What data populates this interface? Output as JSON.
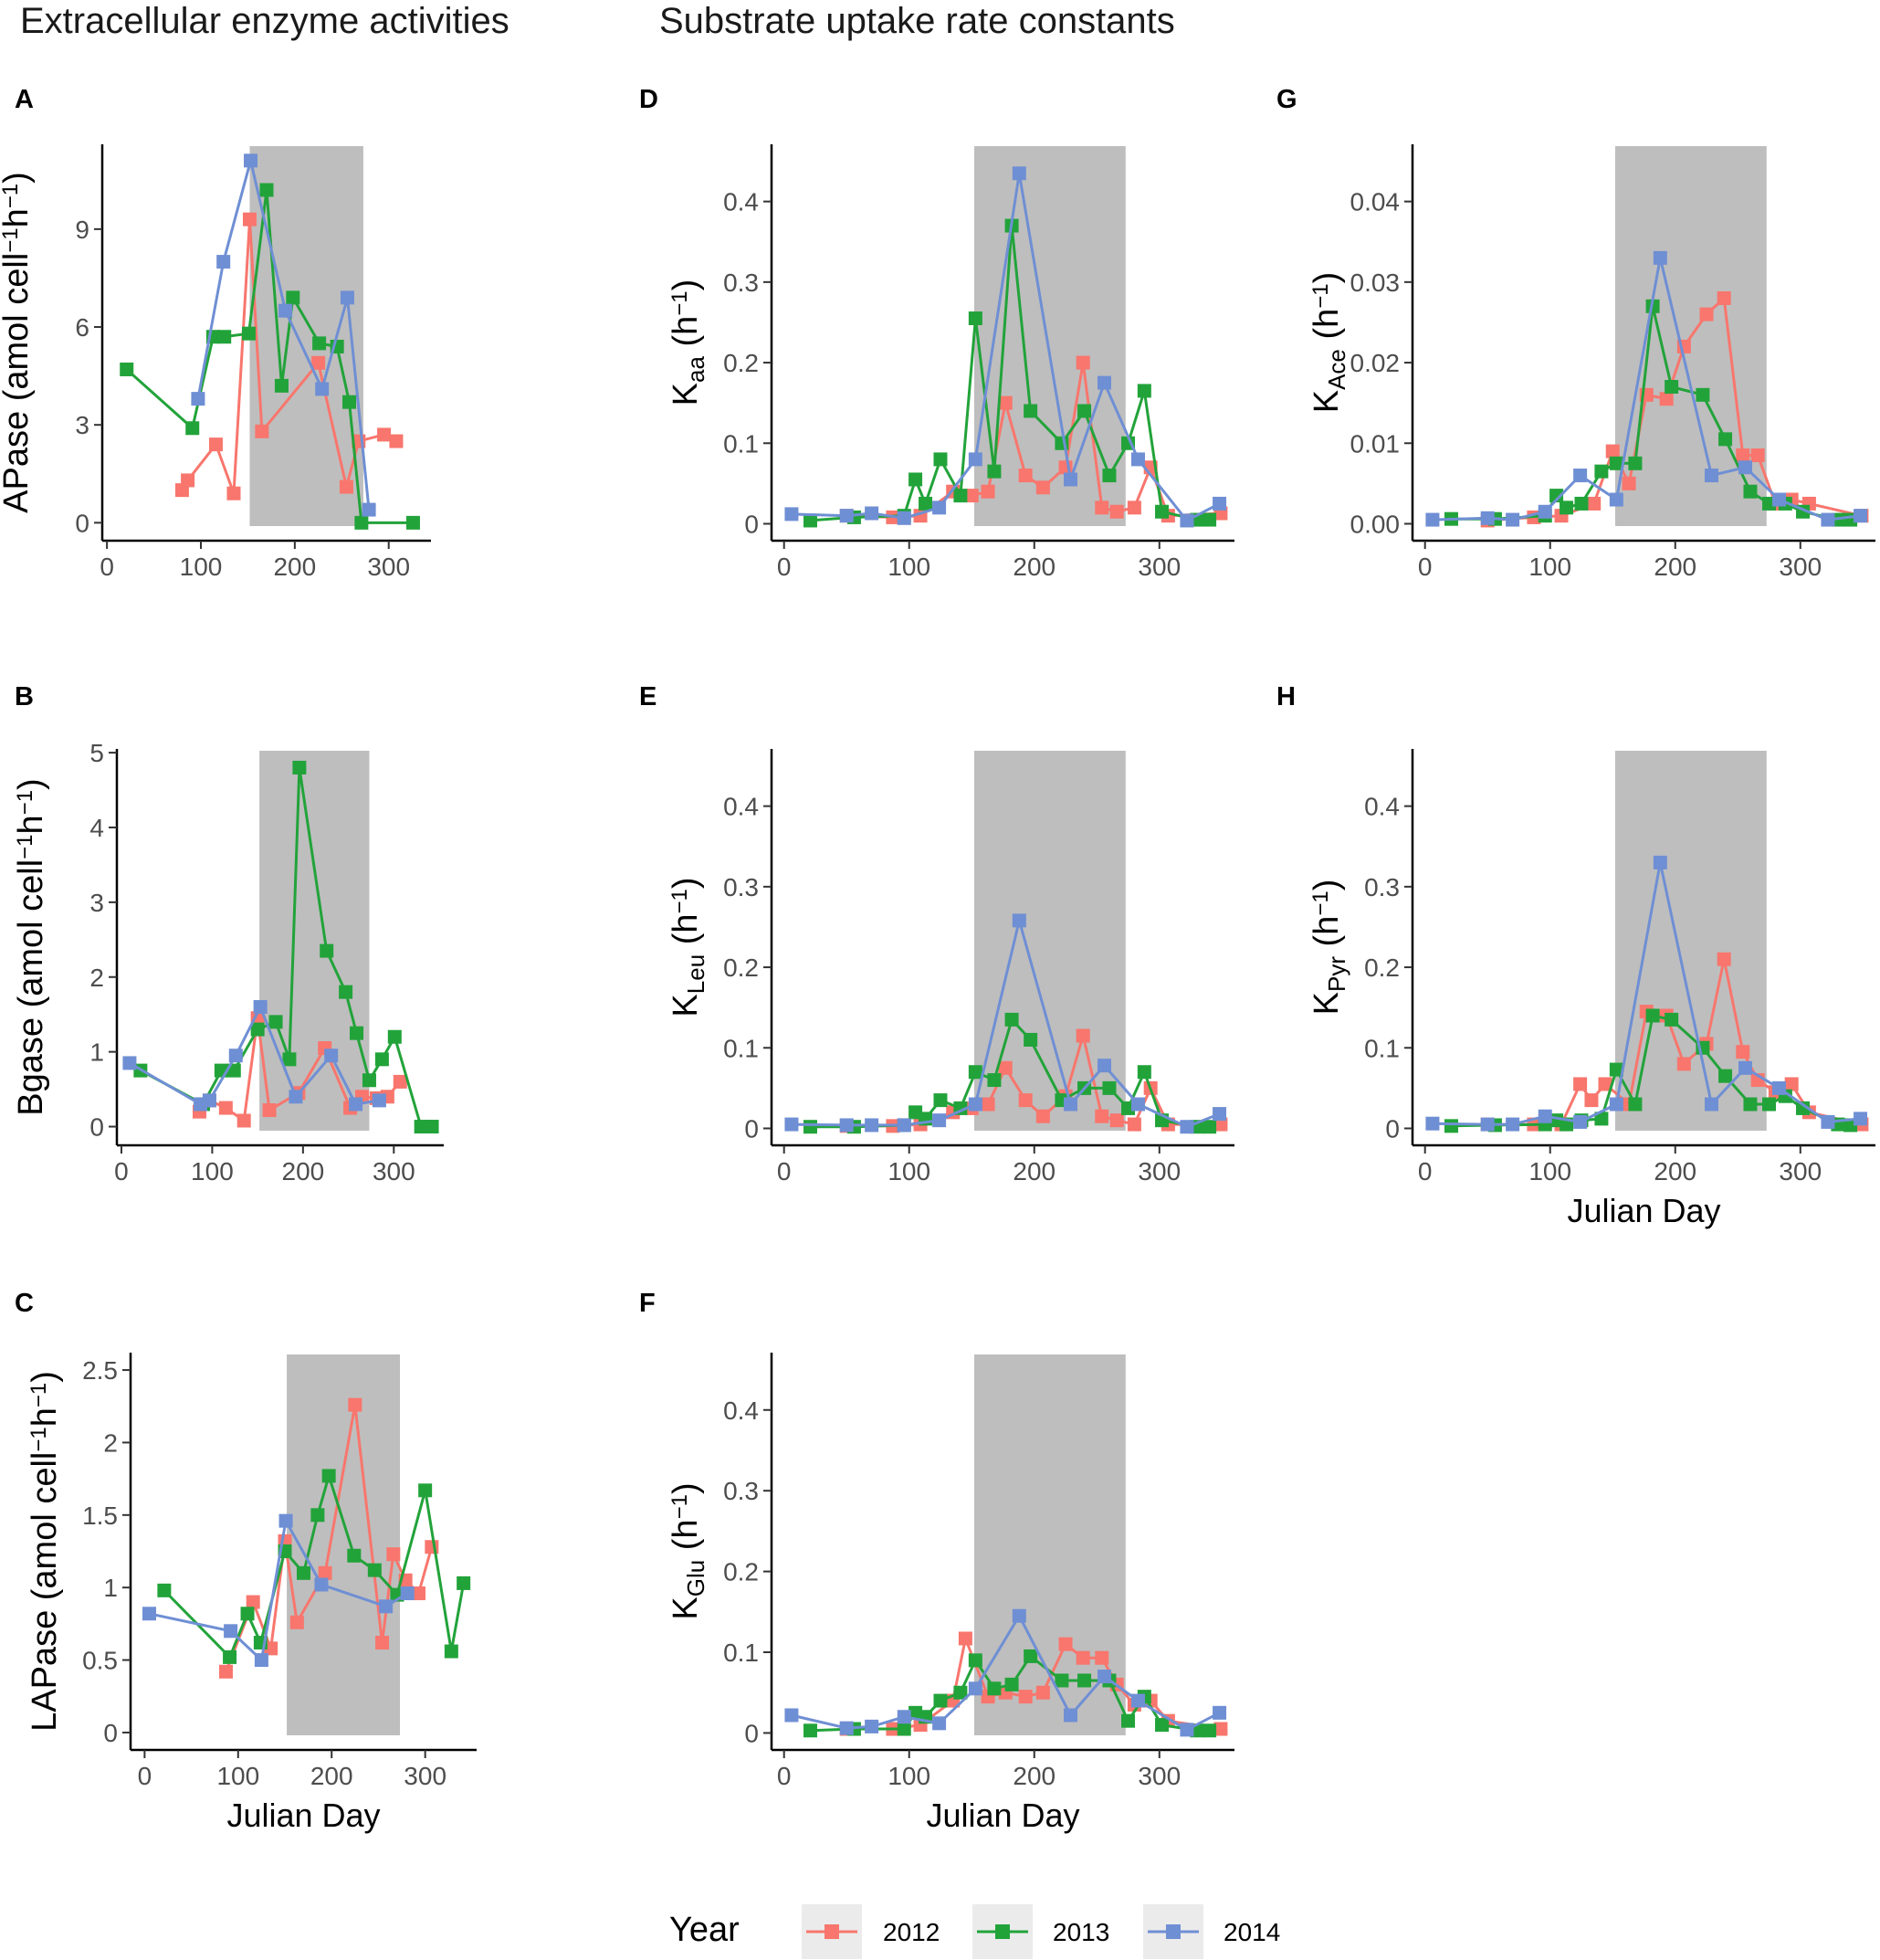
{
  "section_titles": {
    "left": "Extracellular enzyme activities",
    "right": "Substrate uptake rate constants"
  },
  "x_axis_title": "Julian Day",
  "legend": {
    "title": "Year",
    "entries": [
      {
        "label": "2012",
        "color": "#F8766D"
      },
      {
        "label": "2013",
        "color": "#22A33A"
      },
      {
        "label": "2014",
        "color": "#6F8FD4"
      }
    ]
  },
  "shading": {
    "color": "#BEBEBE"
  },
  "chart_data": [
    {
      "panel": "A",
      "type": "line",
      "ylabel": {
        "main": "APase (amol cell",
        "sup1": "−1",
        "mid": "h",
        "sup2": "−1",
        "end": ")"
      },
      "xlim": [
        -5,
        345
      ],
      "ylim": [
        -0.55,
        11.6
      ],
      "xticks": [
        0,
        100,
        200,
        300
      ],
      "yticks": [
        0,
        3,
        6,
        9
      ],
      "shade": [
        152,
        273
      ],
      "show_xlabel": false,
      "series": [
        {
          "name": "2012",
          "x": [
            80,
            86,
            116,
            135,
            152,
            165,
            225,
            255,
            268,
            295,
            308
          ],
          "y": [
            1.0,
            1.3,
            2.4,
            0.9,
            9.3,
            2.8,
            4.9,
            1.1,
            2.5,
            2.7,
            2.5
          ]
        },
        {
          "name": "2013",
          "x": [
            21,
            91,
            113,
            125,
            151,
            170,
            186,
            198,
            226,
            245,
            258,
            271,
            326
          ],
          "y": [
            4.7,
            2.9,
            5.7,
            5.7,
            5.8,
            10.2,
            4.2,
            6.9,
            5.5,
            5.4,
            3.7,
            0.0,
            0.0
          ]
        },
        {
          "name": "2014",
          "x": [
            97,
            124,
            153,
            190,
            229,
            256,
            279
          ],
          "y": [
            3.8,
            8.0,
            11.1,
            6.5,
            4.1,
            6.9,
            0.4
          ]
        }
      ]
    },
    {
      "panel": "B",
      "type": "line",
      "ylabel": {
        "main": "Bgase (amol cell",
        "sup1": "−1",
        "mid": "h",
        "sup2": "−1",
        "end": ")"
      },
      "xlim": [
        -5,
        355
      ],
      "ylim": [
        -0.25,
        5.05
      ],
      "xticks": [
        0,
        100,
        200,
        300
      ],
      "yticks": [
        0,
        1,
        2,
        3,
        4,
        5
      ],
      "shade": [
        152,
        273
      ],
      "show_xlabel": false,
      "series": [
        {
          "name": "2012",
          "x": [
            86,
            97,
            115,
            135,
            150,
            163,
            195,
            224,
            252,
            265,
            281,
            293,
            307
          ],
          "y": [
            0.2,
            0.35,
            0.25,
            0.08,
            1.45,
            0.22,
            0.45,
            1.05,
            0.25,
            0.4,
            0.38,
            0.4,
            0.6
          ]
        },
        {
          "name": "2013",
          "x": [
            21,
            90,
            110,
            124,
            150,
            170,
            185,
            196,
            226,
            247,
            259,
            273,
            287,
            301,
            330,
            342
          ],
          "y": [
            0.75,
            0.3,
            0.75,
            0.75,
            1.3,
            1.4,
            0.9,
            4.8,
            2.35,
            1.8,
            1.25,
            0.62,
            0.9,
            1.2,
            0.0,
            0.0
          ]
        },
        {
          "name": "2014",
          "x": [
            9,
            87,
            97,
            126,
            153,
            192,
            231,
            258,
            284
          ],
          "y": [
            0.85,
            0.3,
            0.35,
            0.95,
            1.6,
            0.4,
            0.95,
            0.3,
            0.35
          ]
        }
      ]
    },
    {
      "panel": "C",
      "type": "line",
      "ylabel": {
        "main": "LAPase (amol cell",
        "sup1": "−1",
        "mid": "h",
        "sup2": "−1",
        "end": ")"
      },
      "xlim": [
        -15,
        355
      ],
      "ylim": [
        -0.12,
        2.62
      ],
      "xticks": [
        0,
        100,
        200,
        300
      ],
      "yticks": [
        0.0,
        0.5,
        1.0,
        1.5,
        2.0,
        2.5
      ],
      "shade": [
        152,
        273
      ],
      "show_xlabel": true,
      "series": [
        {
          "name": "2012",
          "x": [
            87,
            116,
            135,
            150,
            163,
            193,
            225,
            254,
            266,
            279,
            293,
            307
          ],
          "y": [
            0.42,
            0.9,
            0.58,
            1.32,
            0.76,
            1.1,
            2.26,
            0.62,
            1.23,
            1.05,
            0.96,
            1.28
          ]
        },
        {
          "name": "2013",
          "x": [
            21,
            91,
            110,
            124,
            150,
            170,
            185,
            197,
            224,
            246,
            270,
            300,
            328,
            341
          ],
          "y": [
            0.98,
            0.52,
            0.82,
            0.62,
            1.25,
            1.1,
            1.5,
            1.77,
            1.22,
            1.12,
            0.95,
            1.67,
            0.56,
            1.03
          ]
        },
        {
          "name": "2014",
          "x": [
            5,
            92,
            125,
            151,
            189,
            258,
            281
          ],
          "y": [
            0.82,
            0.7,
            0.5,
            1.46,
            1.02,
            0.87,
            0.96
          ]
        }
      ]
    },
    {
      "panel": "D",
      "type": "line",
      "ylabel": {
        "main": "K",
        "sub": "aa",
        "end": " (h",
        "sup": "−1",
        "close": ")"
      },
      "xlim": [
        -10,
        360
      ],
      "ylim": [
        -0.021,
        0.471
      ],
      "xticks": [
        0,
        100,
        200,
        300
      ],
      "yticks": [
        0.0,
        0.1,
        0.2,
        0.3,
        0.4
      ],
      "shade": [
        152,
        273
      ],
      "show_xlabel": false,
      "series": [
        {
          "name": "2012",
          "x": [
            50,
            87,
            109,
            135,
            150,
            163,
            177,
            193,
            207,
            225,
            239,
            254,
            266,
            280,
            293,
            307,
            349
          ],
          "y": [
            0.01,
            0.008,
            0.01,
            0.04,
            0.035,
            0.04,
            0.15,
            0.06,
            0.045,
            0.07,
            0.2,
            0.02,
            0.015,
            0.02,
            0.07,
            0.01,
            0.013
          ]
        },
        {
          "name": "2013",
          "x": [
            21,
            56,
            96,
            105,
            113,
            125,
            141,
            153,
            168,
            182,
            197,
            222,
            240,
            260,
            275,
            288,
            302,
            330,
            340
          ],
          "y": [
            0.004,
            0.008,
            0.01,
            0.055,
            0.025,
            0.08,
            0.035,
            0.255,
            0.065,
            0.37,
            0.14,
            0.1,
            0.14,
            0.06,
            0.1,
            0.165,
            0.015,
            0.005,
            0.005
          ]
        },
        {
          "name": "2014",
          "x": [
            6,
            50,
            70,
            96,
            124,
            153,
            188,
            229,
            256,
            283,
            322,
            348
          ],
          "y": [
            0.012,
            0.01,
            0.013,
            0.007,
            0.02,
            0.08,
            0.435,
            0.055,
            0.175,
            0.08,
            0.004,
            0.025
          ]
        }
      ]
    },
    {
      "panel": "E",
      "type": "line",
      "ylabel": {
        "main": "K",
        "sub": "Leu",
        "end": " (h",
        "sup": "−1",
        "close": ")"
      },
      "xlim": [
        -10,
        360
      ],
      "ylim": [
        -0.021,
        0.471
      ],
      "xticks": [
        0,
        100,
        200,
        300
      ],
      "yticks": [
        0.0,
        0.1,
        0.2,
        0.3,
        0.4
      ],
      "shade": [
        152,
        273
      ],
      "show_xlabel": false,
      "series": [
        {
          "name": "2012",
          "x": [
            50,
            87,
            109,
            135,
            150,
            163,
            177,
            193,
            207,
            225,
            239,
            254,
            266,
            280,
            293,
            307,
            349
          ],
          "y": [
            0.003,
            0.003,
            0.005,
            0.02,
            0.025,
            0.03,
            0.075,
            0.035,
            0.015,
            0.04,
            0.115,
            0.015,
            0.01,
            0.005,
            0.05,
            0.005,
            0.005
          ]
        },
        {
          "name": "2013",
          "x": [
            21,
            56,
            96,
            105,
            113,
            125,
            141,
            153,
            168,
            182,
            197,
            222,
            240,
            260,
            275,
            288,
            302,
            330,
            340
          ],
          "y": [
            0.002,
            0.002,
            0.004,
            0.02,
            0.012,
            0.035,
            0.025,
            0.07,
            0.06,
            0.135,
            0.11,
            0.035,
            0.05,
            0.05,
            0.025,
            0.07,
            0.01,
            0.002,
            0.002
          ]
        },
        {
          "name": "2014",
          "x": [
            6,
            50,
            70,
            96,
            124,
            153,
            188,
            229,
            256,
            283,
            322,
            348
          ],
          "y": [
            0.005,
            0.004,
            0.004,
            0.004,
            0.01,
            0.03,
            0.258,
            0.03,
            0.078,
            0.03,
            0.002,
            0.018
          ]
        }
      ]
    },
    {
      "panel": "F",
      "type": "line",
      "ylabel": {
        "main": "K",
        "sub": "Glu",
        "end": " (h",
        "sup": "−1",
        "close": ")"
      },
      "xlim": [
        -10,
        360
      ],
      "ylim": [
        -0.021,
        0.471
      ],
      "xticks": [
        0,
        100,
        200,
        300
      ],
      "yticks": [
        0.0,
        0.1,
        0.2,
        0.3,
        0.4
      ],
      "shade": [
        152,
        273
      ],
      "show_xlabel": true,
      "series": [
        {
          "name": "2012",
          "x": [
            50,
            87,
            109,
            135,
            145,
            163,
            177,
            193,
            207,
            225,
            239,
            254,
            266,
            280,
            293,
            307,
            349
          ],
          "y": [
            0.005,
            0.005,
            0.01,
            0.04,
            0.117,
            0.045,
            0.05,
            0.045,
            0.05,
            0.11,
            0.093,
            0.093,
            0.06,
            0.035,
            0.04,
            0.015,
            0.005
          ]
        },
        {
          "name": "2013",
          "x": [
            21,
            56,
            96,
            105,
            113,
            125,
            141,
            153,
            168,
            182,
            197,
            222,
            240,
            260,
            275,
            288,
            302,
            330,
            340
          ],
          "y": [
            0.003,
            0.005,
            0.005,
            0.025,
            0.02,
            0.04,
            0.05,
            0.09,
            0.055,
            0.06,
            0.095,
            0.065,
            0.065,
            0.065,
            0.015,
            0.045,
            0.01,
            0.003,
            0.003
          ]
        },
        {
          "name": "2014",
          "x": [
            6,
            50,
            70,
            96,
            124,
            153,
            188,
            229,
            256,
            283,
            322,
            348
          ],
          "y": [
            0.022,
            0.006,
            0.008,
            0.02,
            0.012,
            0.055,
            0.145,
            0.022,
            0.07,
            0.04,
            0.004,
            0.025
          ]
        }
      ]
    },
    {
      "panel": "G",
      "type": "line",
      "ylabel": {
        "main": "K",
        "sub": "Ace",
        "end": " (h",
        "sup": "−1",
        "close": ")"
      },
      "xlim": [
        -10,
        360
      ],
      "ylim": [
        -0.0021,
        0.0471
      ],
      "xticks": [
        0,
        100,
        200,
        300
      ],
      "yticks": [
        0.0,
        0.01,
        0.02,
        0.03,
        0.04
      ],
      "ytick_labels": [
        "0.00",
        "0.01",
        "0.02",
        "0.03",
        "0.04"
      ],
      "shade": [
        152,
        273
      ],
      "show_xlabel": false,
      "series": [
        {
          "name": "2012",
          "x": [
            50,
            87,
            109,
            135,
            150,
            163,
            177,
            193,
            207,
            225,
            239,
            254,
            266,
            280,
            293,
            307,
            349
          ],
          "y": [
            0.0004,
            0.0008,
            0.001,
            0.0025,
            0.009,
            0.005,
            0.016,
            0.0155,
            0.022,
            0.026,
            0.028,
            0.0085,
            0.0085,
            0.0025,
            0.003,
            0.0025,
            0.001
          ]
        },
        {
          "name": "2013",
          "x": [
            21,
            56,
            96,
            105,
            113,
            125,
            141,
            153,
            168,
            182,
            197,
            222,
            240,
            260,
            275,
            288,
            302,
            330,
            340
          ],
          "y": [
            0.0006,
            0.0006,
            0.001,
            0.0035,
            0.002,
            0.0025,
            0.0065,
            0.0075,
            0.0075,
            0.027,
            0.017,
            0.016,
            0.0105,
            0.004,
            0.0025,
            0.0025,
            0.0015,
            0.0005,
            0.0005
          ]
        },
        {
          "name": "2014",
          "x": [
            6,
            50,
            70,
            96,
            124,
            153,
            188,
            229,
            256,
            283,
            322,
            348
          ],
          "y": [
            0.0005,
            0.0007,
            0.0005,
            0.0015,
            0.006,
            0.003,
            0.033,
            0.006,
            0.007,
            0.003,
            0.0005,
            0.001
          ]
        }
      ]
    },
    {
      "panel": "H",
      "type": "line",
      "ylabel": {
        "main": "K",
        "sub": "Pyr",
        "end": " (h",
        "sup": "−1",
        "close": ")"
      },
      "xlim": [
        -10,
        360
      ],
      "ylim": [
        -0.021,
        0.471
      ],
      "xticks": [
        0,
        100,
        200,
        300
      ],
      "yticks": [
        0.0,
        0.1,
        0.2,
        0.3,
        0.4
      ],
      "shade": [
        152,
        273
      ],
      "show_xlabel": true,
      "series": [
        {
          "name": "2012",
          "x": [
            50,
            87,
            109,
            124,
            133,
            144,
            163,
            177,
            193,
            207,
            225,
            239,
            254,
            266,
            280,
            293,
            307,
            349
          ],
          "y": [
            0.005,
            0.005,
            0.005,
            0.055,
            0.035,
            0.055,
            0.03,
            0.145,
            0.14,
            0.08,
            0.105,
            0.21,
            0.095,
            0.06,
            0.045,
            0.055,
            0.02,
            0.005
          ]
        },
        {
          "name": "2013",
          "x": [
            21,
            56,
            96,
            105,
            113,
            125,
            141,
            153,
            168,
            182,
            197,
            222,
            240,
            260,
            275,
            288,
            302,
            330,
            340
          ],
          "y": [
            0.003,
            0.004,
            0.005,
            0.01,
            0.005,
            0.01,
            0.012,
            0.073,
            0.03,
            0.14,
            0.135,
            0.1,
            0.065,
            0.03,
            0.03,
            0.04,
            0.025,
            0.005,
            0.004
          ]
        },
        {
          "name": "2014",
          "x": [
            6,
            50,
            70,
            96,
            124,
            153,
            188,
            229,
            256,
            283,
            322,
            348
          ],
          "y": [
            0.006,
            0.005,
            0.005,
            0.015,
            0.008,
            0.03,
            0.33,
            0.03,
            0.075,
            0.05,
            0.008,
            0.012
          ]
        }
      ]
    }
  ]
}
